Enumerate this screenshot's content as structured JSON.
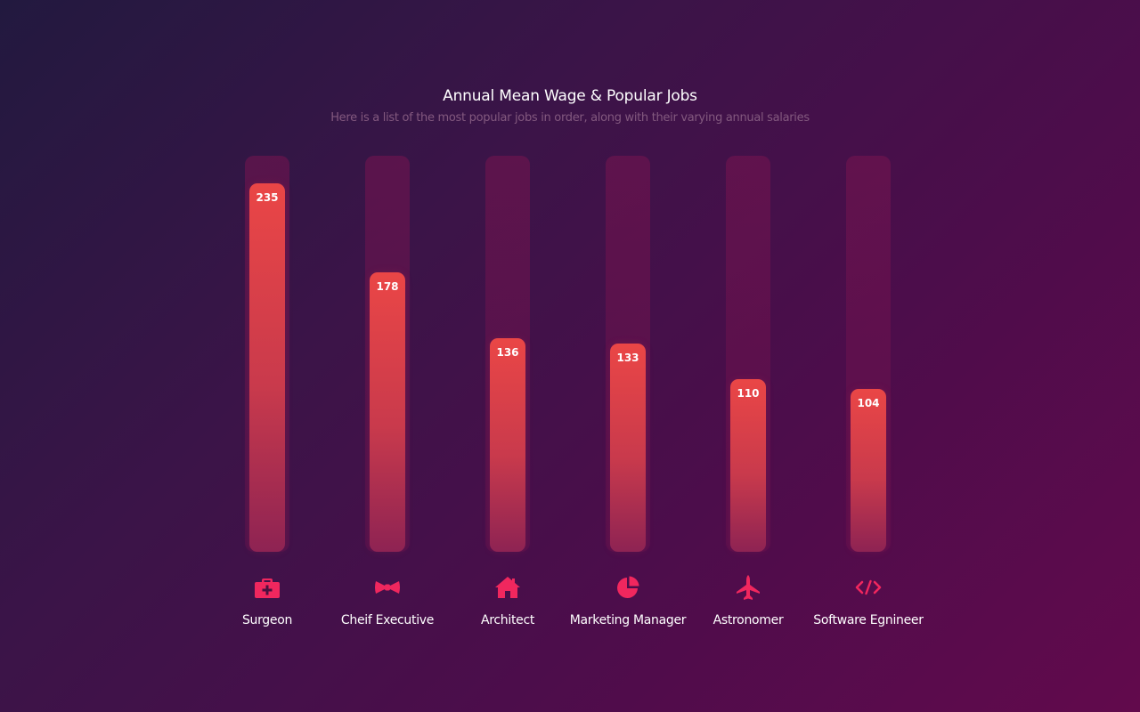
{
  "chart_data": {
    "type": "bar",
    "title": "Annual Mean Wage & Popular Jobs",
    "subtitle": "Here is a list of the most popular jobs in order, along with their varying annual salaries",
    "categories": [
      "Surgeon",
      "Cheif Executive",
      "Architect",
      "Marketing Manager",
      "Astronomer",
      "Software Egnineer"
    ],
    "values": [
      235,
      178,
      136,
      133,
      110,
      104
    ],
    "icons": [
      "medical-kit-icon",
      "bow-tie-icon",
      "house-icon",
      "pie-chart-icon",
      "airplane-icon",
      "code-icon"
    ],
    "ylim": [
      0,
      235
    ],
    "grid": false,
    "legend": "none"
  },
  "colors": {
    "bar_top": "#ea4646",
    "bar_bottom": "#8e2353",
    "icon": "#f0275e",
    "title": "#ffffff",
    "subtitle": "#83597f"
  }
}
